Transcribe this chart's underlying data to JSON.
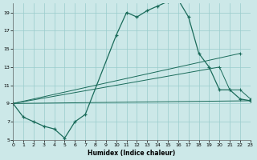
{
  "xlabel": "Humidex (Indice chaleur)",
  "bg_color": "#cce8e8",
  "grid_color": "#99cccc",
  "line_color": "#1a6b5a",
  "main_x": [
    0,
    1,
    2,
    3,
    4,
    5,
    6,
    7,
    10,
    11,
    12,
    13,
    14,
    15,
    16,
    17,
    18,
    19,
    20,
    21,
    22,
    23
  ],
  "main_y": [
    9,
    7.5,
    7,
    6.5,
    6.2,
    5.2,
    7.0,
    7.8,
    16.5,
    19.0,
    18.5,
    19.2,
    19.7,
    20.2,
    20.4,
    18.5,
    14.5,
    13.0,
    10.5,
    10.5,
    9.5,
    9.3
  ],
  "line2_x": [
    0,
    22
  ],
  "line2_y": [
    9,
    14.5
  ],
  "line3_x": [
    0,
    20,
    21,
    22,
    23
  ],
  "line3_y": [
    9,
    13.0,
    10.5,
    10.5,
    9.5
  ],
  "line4_x": [
    0,
    23
  ],
  "line4_y": [
    9,
    9.3
  ],
  "ylim": [
    5,
    20
  ],
  "xlim": [
    0,
    23
  ],
  "yticks": [
    5,
    7,
    9,
    11,
    13,
    15,
    17,
    19
  ],
  "xticks": [
    0,
    1,
    2,
    3,
    4,
    5,
    6,
    7,
    8,
    9,
    10,
    11,
    12,
    13,
    14,
    15,
    16,
    17,
    18,
    19,
    20,
    21,
    22,
    23
  ]
}
